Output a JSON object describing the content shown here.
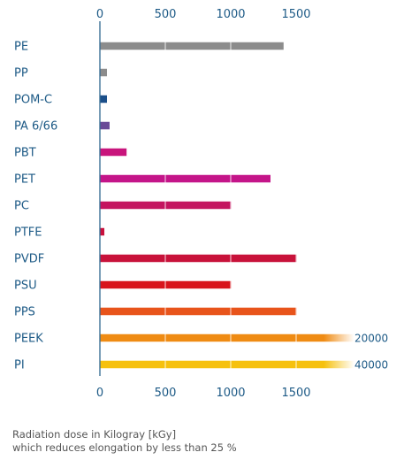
{
  "chart_data": {
    "type": "bar",
    "orientation": "horizontal",
    "categories": [
      "PE",
      "PP",
      "POM-C",
      "PA 6/66",
      "PBT",
      "PET",
      "PC",
      "PTFE",
      "PVDF",
      "PSU",
      "PPS",
      "PEEK",
      "PI"
    ],
    "values": [
      1400,
      50,
      50,
      70,
      200,
      1300,
      1000,
      30,
      1500,
      1000,
      1500,
      20000,
      40000
    ],
    "colors": [
      "#8c8c8c",
      "#8c8c8c",
      "#1b4f8a",
      "#6a4a97",
      "#c8157c",
      "#c41589",
      "#c4145f",
      "#c8103c",
      "#c8123a",
      "#d8141b",
      "#e8541b",
      "#ef8b13",
      "#f6c10e"
    ],
    "value_labels": [
      "",
      "",
      "",
      "",
      "",
      "",
      "",
      "",
      "",
      "",
      "",
      "20000",
      "40000"
    ],
    "x_ticks": [
      "0",
      "500",
      "1000",
      "1500"
    ],
    "x_tick_values": [
      0,
      500,
      1000,
      1500
    ],
    "xlim": [
      0,
      1800
    ],
    "grid": true,
    "axis_position": "top and bottom",
    "title": "",
    "xlabel": "",
    "ylabel": ""
  },
  "caption": {
    "line1": "Radiation dose in Kilogray [kGy]",
    "line2": "which reduces elongation by less than 25 %"
  }
}
